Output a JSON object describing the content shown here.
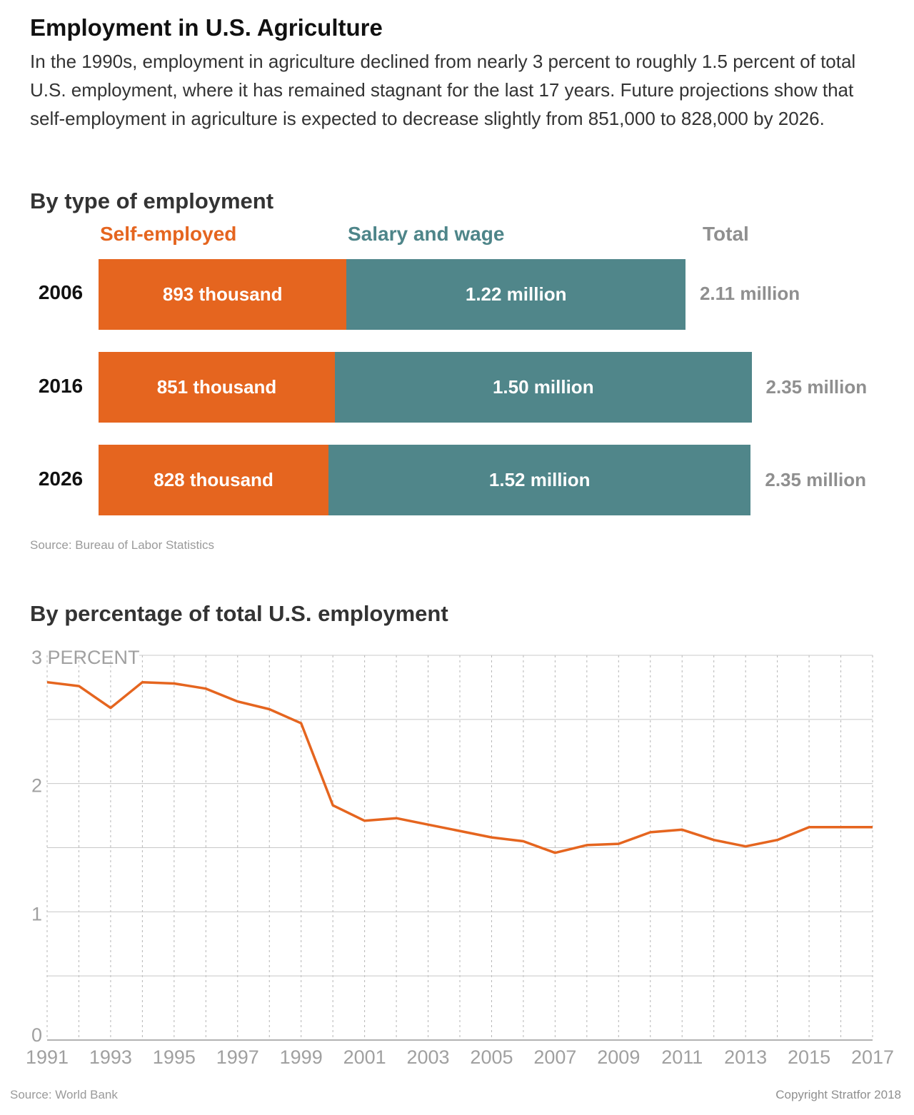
{
  "header": {
    "title": "Employment in U.S. Agriculture",
    "intro": "In the 1990s, employment in agriculture declined from nearly 3 percent to roughly 1.5 percent of total U.S. employment, where it has remained stagnant for the last 17 years. Future projections show that self-employment in agriculture is expected to decrease slightly from 851,000 to 828,000 by 2026."
  },
  "bar_section": {
    "title": "By type of employment",
    "legend": {
      "self": "Self-employed",
      "salary": "Salary and wage",
      "total": "Total"
    },
    "source": "Source: Bureau of Labor Statistics"
  },
  "line_section": {
    "title": "By percentage of total U.S. employment",
    "source": "Source: World Bank"
  },
  "footer": {
    "copyright": "Copyright Stratfor 2018"
  },
  "colors": {
    "self": "#e5651f",
    "salary": "#50868a",
    "total": "#8f8f8f",
    "line": "#e5651f"
  },
  "chart_data": [
    {
      "type": "bar",
      "stacked": true,
      "orientation": "horizontal",
      "title": "By type of employment",
      "categories": [
        "2006",
        "2016",
        "2026"
      ],
      "series": [
        {
          "name": "Self-employed",
          "values": [
            0.893,
            0.851,
            0.828
          ],
          "labels": [
            "893 thousand",
            "851 thousand",
            "828 thousand"
          ]
        },
        {
          "name": "Salary and wage",
          "values": [
            1.22,
            1.5,
            1.52
          ],
          "labels": [
            "1.22 million",
            "1.50 million",
            "1.52 million"
          ]
        }
      ],
      "totals": {
        "name": "Total",
        "values": [
          2.11,
          2.35,
          2.35
        ],
        "labels": [
          "2.11 million",
          "2.35 million",
          "2.35 million"
        ]
      },
      "unit": "million"
    },
    {
      "type": "line",
      "title": "By percentage of total U.S. employment",
      "x": [
        1991,
        1992,
        1993,
        1994,
        1995,
        1996,
        1997,
        1998,
        1999,
        2000,
        2001,
        2002,
        2003,
        2004,
        2005,
        2006,
        2007,
        2008,
        2009,
        2010,
        2011,
        2012,
        2013,
        2014,
        2015,
        2016,
        2017
      ],
      "series": [
        {
          "values": [
            2.79,
            2.76,
            2.59,
            2.79,
            2.78,
            2.74,
            2.64,
            2.58,
            2.47,
            1.83,
            1.71,
            1.73,
            1.68,
            1.63,
            1.58,
            1.55,
            1.46,
            1.52,
            1.53,
            1.62,
            1.64,
            1.56,
            1.51,
            1.56,
            1.66,
            1.66,
            1.66
          ]
        }
      ],
      "ylim": [
        0,
        3
      ],
      "yticks": [
        0,
        1,
        2,
        3
      ],
      "ytick_labels": [
        "0",
        "1",
        "2",
        "3 PERCENT"
      ],
      "xticks": [
        1991,
        1993,
        1995,
        1997,
        1999,
        2001,
        2003,
        2005,
        2007,
        2009,
        2011,
        2013,
        2015,
        2017
      ],
      "grid": true
    }
  ]
}
